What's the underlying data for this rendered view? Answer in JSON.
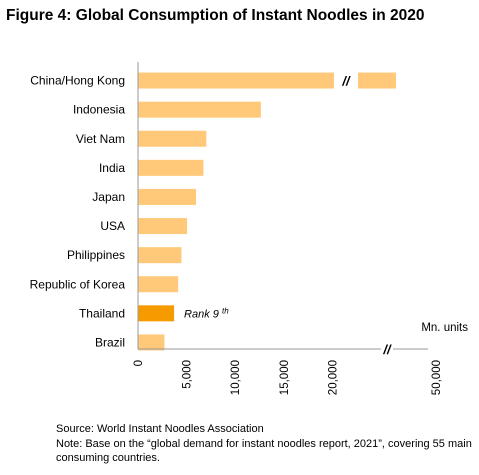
{
  "title": "Figure 4: Global Consumption of Instant Noodles in 2020",
  "chart_data": {
    "type": "bar",
    "orientation": "horizontal",
    "title": "Figure 4: Global Consumption of Instant Noodles in 2020",
    "unit_label": "Mn. units",
    "categories": [
      "China/Hong Kong",
      "Indonesia",
      "Viet Nam",
      "India",
      "Japan",
      "USA",
      "Philippines",
      "Republic of Korea",
      "Thailand",
      "Brazil"
    ],
    "values": [
      46350,
      12640,
      7030,
      6730,
      5970,
      5050,
      4470,
      4130,
      3710,
      2720
    ],
    "axis_break": "//",
    "x_ticks": [
      "0",
      "5,000",
      "10,000",
      "15,000",
      "20,000",
      "50,000"
    ],
    "xlim": [
      0,
      25000
    ],
    "highlight": {
      "category": "Thailand",
      "annotation": "Rank 9",
      "annotation_sup": "th"
    },
    "colors": {
      "bar": "#FFC979",
      "highlight": "#F59B00"
    },
    "grid": false,
    "legend": false
  },
  "source": "Source: World Instant Noodles Association",
  "note": "Note: Base on the “global demand for instant noodles report, 2021”, covering 55 main consuming countries."
}
